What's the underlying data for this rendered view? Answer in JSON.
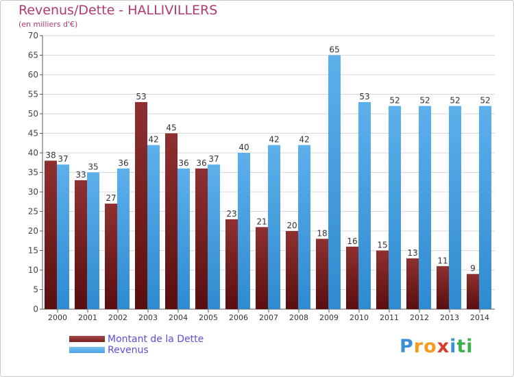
{
  "title": "Revenus/Dette - HALLIVILLERS",
  "subtitle": "(en milliers d'€)",
  "brand": {
    "letters": [
      "P",
      "r",
      "o",
      "x",
      "i",
      "t",
      "i"
    ],
    "colors": [
      "#3a8fd6",
      "#f39c1f",
      "#f39c1f",
      "#d93a2b",
      "#3a8fd6",
      "#3bb24a",
      "#3bb24a"
    ]
  },
  "legend": [
    {
      "label": "Montant de la Dette",
      "color": "#7a1f1f"
    },
    {
      "label": "Revenus",
      "color": "#4aa3e6"
    }
  ],
  "chart_data": {
    "type": "bar",
    "categories": [
      "2000",
      "2001",
      "2002",
      "2003",
      "2004",
      "2005",
      "2006",
      "2007",
      "2008",
      "2009",
      "2010",
      "2011",
      "2012",
      "2013",
      "2014"
    ],
    "series": [
      {
        "name": "Montant de la Dette",
        "color": "#7a1f1f",
        "values": [
          38,
          33,
          27,
          53,
          45,
          36,
          23,
          21,
          20,
          18,
          16,
          15,
          13,
          11,
          9
        ]
      },
      {
        "name": "Revenus",
        "color": "#4aa3e6",
        "values": [
          37,
          35,
          36,
          42,
          36,
          37,
          40,
          42,
          42,
          65,
          53,
          52,
          52,
          52,
          52
        ]
      }
    ],
    "ylim": [
      0,
      70
    ],
    "yticks": [
      "0",
      "5",
      "10",
      "15",
      "20",
      "25",
      "30",
      "35",
      "40",
      "45",
      "50",
      "55",
      "60",
      "65",
      "70"
    ],
    "grid": true,
    "legend_position": "bottom-left"
  }
}
